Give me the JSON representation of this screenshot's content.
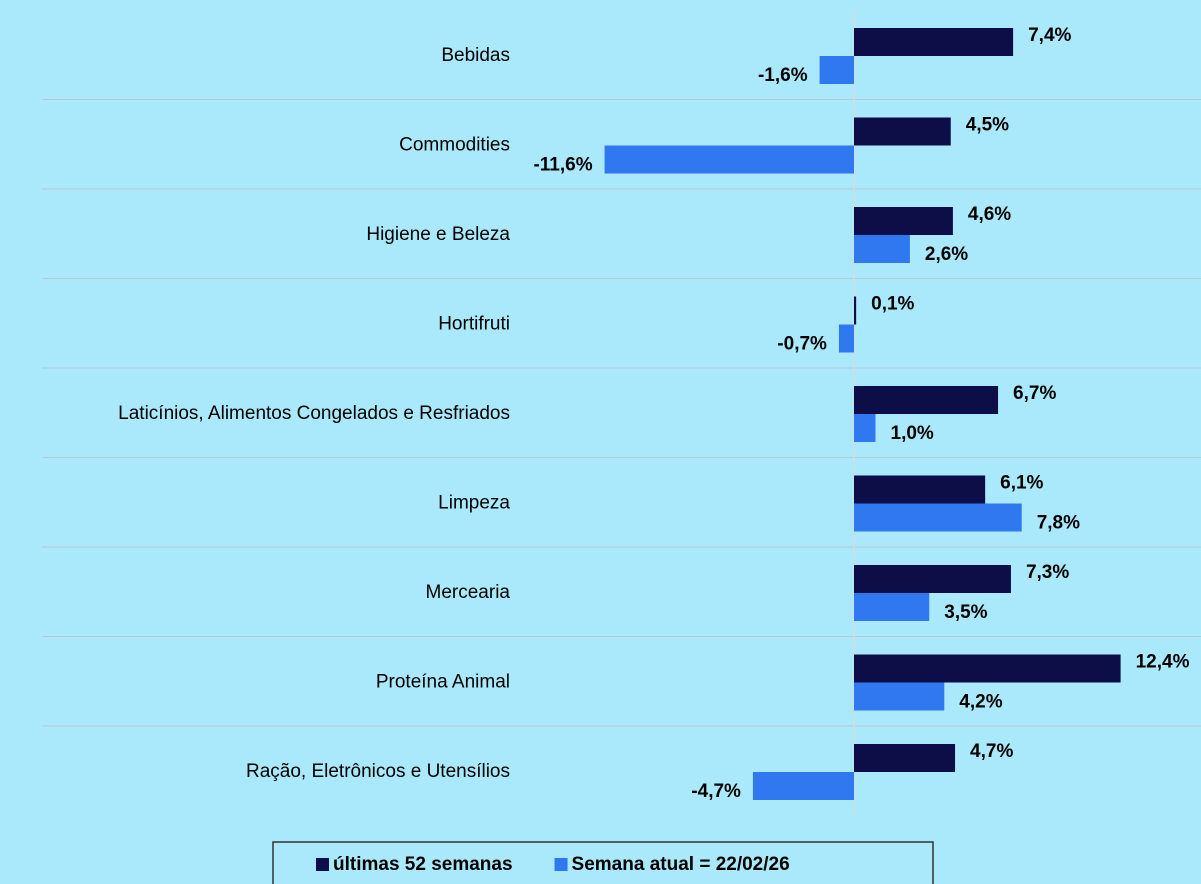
{
  "chart_data": {
    "type": "barh",
    "categories": [
      "Bebidas",
      "Commodities",
      "Higiene e Beleza",
      "Hortifruti",
      "Laticínios, Alimentos Congelados e Resfriados",
      "Limpeza",
      "Mercearia",
      "Proteína Animal",
      "Ração, Eletrônicos e Utensílios"
    ],
    "series": [
      {
        "name": "últimas 52 semanas",
        "color": "#0d0d47",
        "values": [
          7.4,
          4.5,
          4.6,
          0.1,
          6.7,
          6.1,
          7.3,
          12.4,
          4.7
        ],
        "value_labels": [
          "7,4%",
          "4,5%",
          "4,6%",
          "0,1%",
          "6,7%",
          "6,1%",
          "7,3%",
          "12,4%",
          "4,7%"
        ]
      },
      {
        "name": "Semana atual = 22/02/26",
        "color": "#2f78f0",
        "values": [
          -1.6,
          -11.6,
          2.6,
          -0.7,
          1.0,
          7.8,
          3.5,
          4.2,
          -4.7
        ],
        "value_labels": [
          "-1,6%",
          "-11,6%",
          "2,6%",
          "-0,7%",
          "1,0%",
          "7,8%",
          "3,5%",
          "4,2%",
          "-4,7%"
        ]
      }
    ],
    "xlim": [
      -12,
      14
    ],
    "legend": "bottom"
  }
}
